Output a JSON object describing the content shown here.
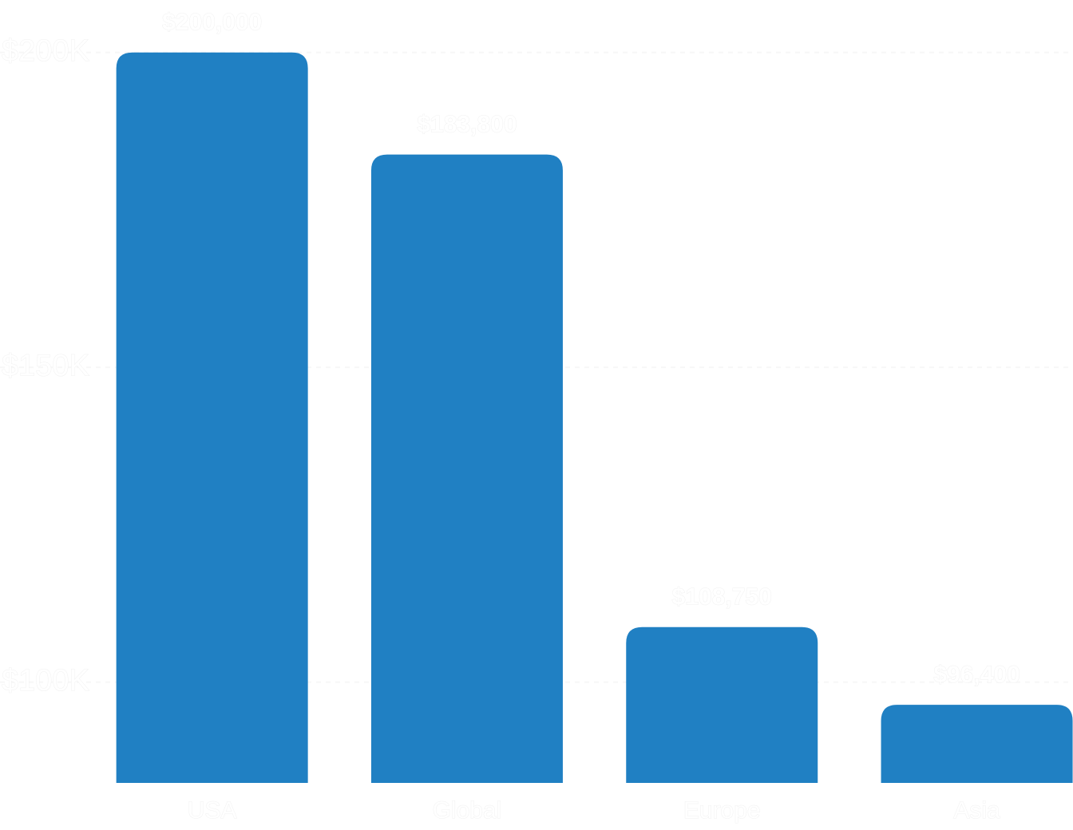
{
  "chart_data": {
    "type": "bar",
    "categories": [
      "USA",
      "Global",
      "Europe",
      "Asia"
    ],
    "values": [
      200000,
      183800,
      108750,
      96400
    ],
    "value_labels": [
      "$200,000",
      "$183,800",
      "$108,750",
      "$96,400"
    ],
    "color": "#2080c3",
    "ylim": [
      84000,
      202000
    ],
    "yticks": [
      {
        "value": 100000,
        "label": "$100K"
      },
      {
        "value": 150000,
        "label": "$150K"
      },
      {
        "value": 200000,
        "label": "$200K"
      }
    ],
    "grid": true
  }
}
